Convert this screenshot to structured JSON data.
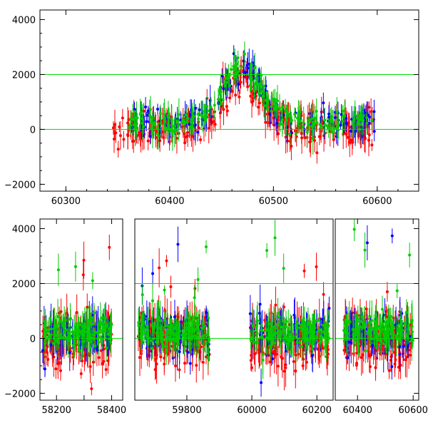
{
  "chart_data": [
    {
      "type": "scatter",
      "xlim": [
        60275,
        60640
      ],
      "ylim": [
        -2250,
        4350
      ],
      "x_ticks": [
        60300,
        60400,
        60500,
        60600
      ],
      "y_ticks": [
        -2000,
        0,
        2000,
        4000
      ],
      "x_tick_labels": [
        "60300",
        "60400",
        "60500",
        "60600"
      ],
      "y_tick_labels": [
        "−2000",
        "0",
        "2000",
        "4000"
      ],
      "reference_lines": [
        0,
        2000
      ],
      "grid": false,
      "error_bars": true,
      "segments": [
        {
          "x_range": [
            60275,
            60640
          ],
          "tick_labels_shown": [
            0,
            1,
            2,
            3
          ]
        }
      ],
      "series": [
        {
          "color": "#ff0000",
          "data_x_range": [
            60345,
            60598
          ],
          "center": 0,
          "spread": 700,
          "bump_x": 60470,
          "bump_y": 2000,
          "points": 300
        },
        {
          "color": "#0000ff",
          "data_x_range": [
            60360,
            60598
          ],
          "center": 250,
          "spread": 500,
          "bump_x": 60470,
          "bump_y": 2000,
          "points": 150
        },
        {
          "color": "#00cc00",
          "data_x_range": [
            60360,
            60595
          ],
          "center": 300,
          "spread": 450,
          "bump_x": 60470,
          "bump_y": 2000,
          "points": 220
        }
      ]
    },
    {
      "type": "scatter",
      "xlim_note": "broken axis with three segments",
      "ylim": [
        -2250,
        4350
      ],
      "y_ticks": [
        -2000,
        0,
        2000,
        4000
      ],
      "y_tick_labels": [
        "−2000",
        "0",
        "2000",
        "4000"
      ],
      "reference_lines": [
        0,
        2000
      ],
      "grid": false,
      "error_bars": true,
      "segments": [
        {
          "x_range": [
            58140,
            58440
          ],
          "x_ticks": [
            58200,
            58300,
            58400
          ],
          "x_tick_labels": [
            "58200",
            "",
            "58400"
          ]
        },
        {
          "x_range": [
            59640,
            60250
          ],
          "x_ticks": [
            59800,
            60000,
            60200
          ],
          "x_tick_labels": [
            "59800",
            "60000",
            "60200"
          ]
        },
        {
          "x_range": [
            60320,
            60620
          ],
          "x_ticks": [
            60400,
            60600
          ],
          "x_tick_labels": [
            "60400",
            "60600"
          ]
        }
      ],
      "data_x_ranges": [
        [
          58150,
          58400
        ],
        [
          59650,
          59870
        ],
        [
          59995,
          60240
        ],
        [
          60350,
          60600
        ]
      ],
      "series": [
        {
          "color": "#ff0000",
          "center": 0,
          "spread": 900,
          "points_per_season": 160
        },
        {
          "color": "#0000ff",
          "center": 200,
          "spread": 700,
          "points_per_season": 70
        },
        {
          "color": "#00cc00",
          "center": 250,
          "spread": 500,
          "points_per_season": 140
        }
      ]
    }
  ]
}
